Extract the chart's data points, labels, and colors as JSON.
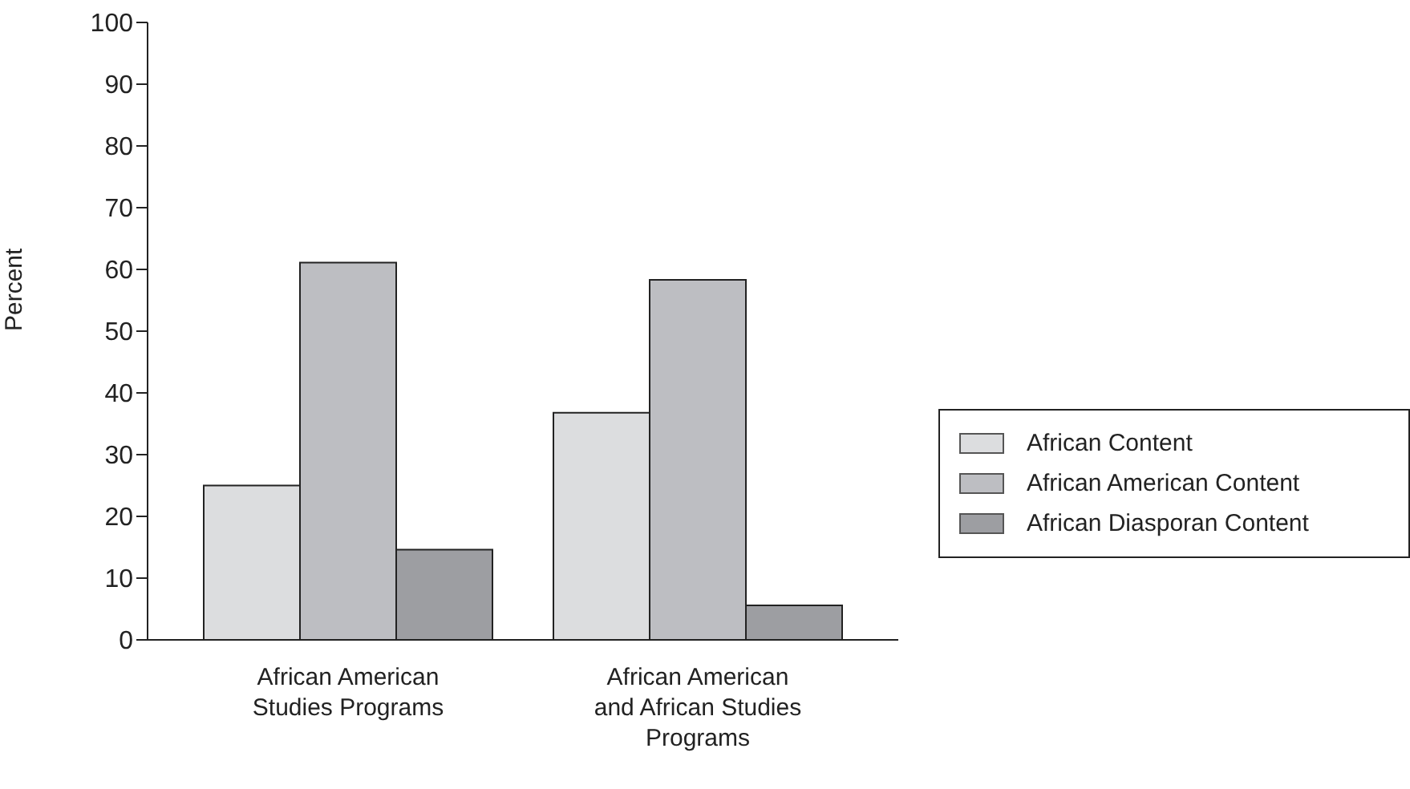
{
  "chart_data": {
    "type": "bar",
    "ylabel": "Percent",
    "categories": [
      "African American\nStudies Programs",
      "African American\nand African Studies\nPrograms"
    ],
    "series": [
      {
        "name": "African Content",
        "color": "#dcdddf",
        "values": [
          25,
          36.8
        ]
      },
      {
        "name": "African American Content",
        "color": "#bdbec2",
        "values": [
          61.1,
          58.3
        ]
      },
      {
        "name": "African Diasporan Content",
        "color": "#9d9ea2",
        "values": [
          14.6,
          5.6
        ]
      }
    ],
    "ylim": [
      0,
      100
    ],
    "yticks": [
      0,
      10,
      20,
      30,
      40,
      50,
      60,
      70,
      80,
      90,
      100
    ],
    "grid": false,
    "legend": "right"
  }
}
